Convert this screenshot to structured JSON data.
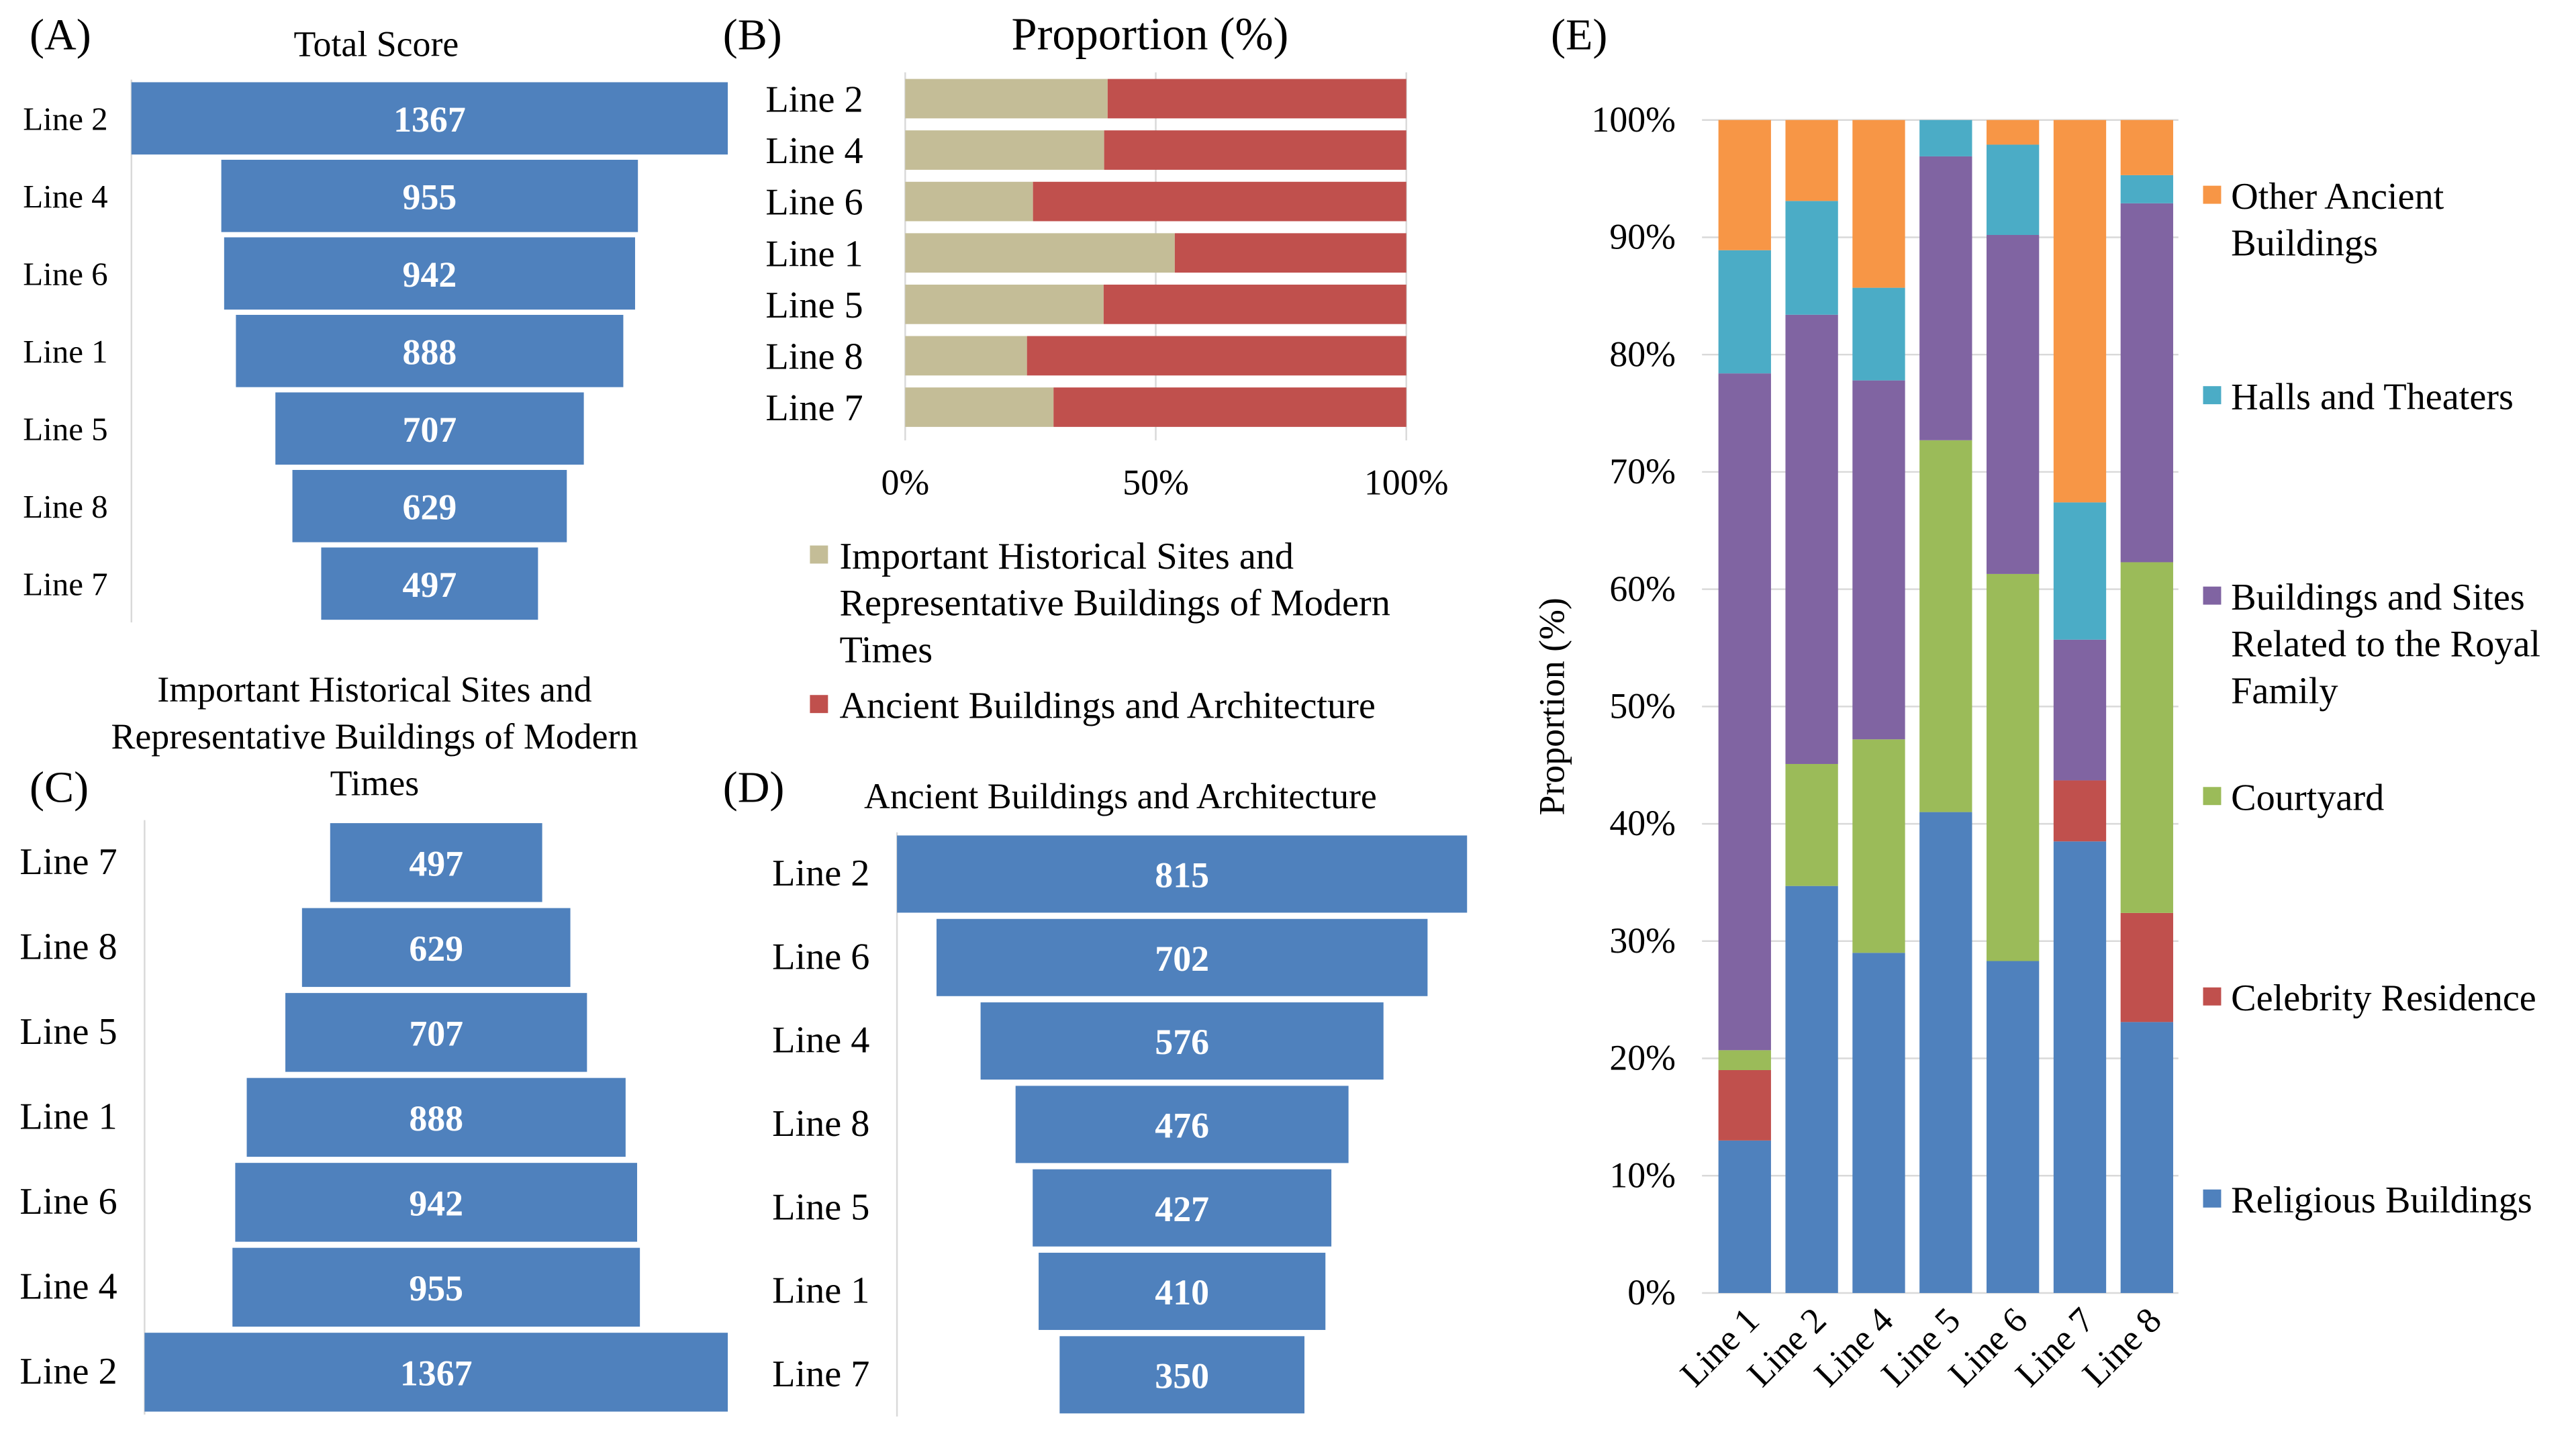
{
  "panels": {
    "a": "(A)",
    "b": "(B)",
    "c": "(C)",
    "d": "(D)",
    "e": "(E)"
  },
  "chart_data": [
    {
      "id": "A",
      "type": "bar",
      "orientation": "horizontal-funnel",
      "title": "Total Score",
      "categories": [
        "Line 2",
        "Line 4",
        "Line 6",
        "Line 1",
        "Line 5",
        "Line 8",
        "Line 7"
      ],
      "values": [
        1367,
        955,
        942,
        888,
        707,
        629,
        497
      ],
      "color": "#4f81bd"
    },
    {
      "id": "B",
      "type": "bar",
      "orientation": "horizontal-stacked-100",
      "title": "Proportion (%)",
      "categories": [
        "Line 2",
        "Line 4",
        "Line 6",
        "Line 1",
        "Line 5",
        "Line 8",
        "Line 7"
      ],
      "series": [
        {
          "name": "Important Historical Sites and Representative Buildings of Modern Times",
          "legend_lines": [
            "Important Historical Sites and",
            "Representative Buildings of Modern",
            "Times"
          ],
          "color": "#c4bd97",
          "values": [
            40.4,
            39.7,
            25.5,
            53.8,
            39.6,
            24.3,
            29.6
          ]
        },
        {
          "name": "Ancient Buildings and Architecture",
          "legend_lines": [
            "Ancient Buildings and Architecture"
          ],
          "color": "#c0504d",
          "values": [
            59.6,
            60.3,
            74.5,
            46.2,
            60.4,
            75.7,
            70.4
          ]
        }
      ],
      "xticks": [
        "0%",
        "50%",
        "100%"
      ],
      "xlim": [
        0,
        100
      ]
    },
    {
      "id": "C",
      "type": "bar",
      "orientation": "horizontal-funnel",
      "title_lines": [
        "Important Historical Sites and",
        "Representative Buildings of Modern",
        "Times"
      ],
      "categories": [
        "Line 7",
        "Line 8",
        "Line 5",
        "Line 1",
        "Line 6",
        "Line 4",
        "Line 2"
      ],
      "values": [
        497,
        629,
        707,
        888,
        942,
        955,
        1367
      ],
      "color": "#4f81bd"
    },
    {
      "id": "D",
      "type": "bar",
      "orientation": "horizontal-funnel",
      "title": "Ancient Buildings and Architecture",
      "categories": [
        "Line 2",
        "Line 6",
        "Line 4",
        "Line 8",
        "Line 5",
        "Line 1",
        "Line 7"
      ],
      "values": [
        815,
        702,
        576,
        476,
        427,
        410,
        350
      ],
      "color": "#4f81bd"
    },
    {
      "id": "E",
      "type": "bar",
      "orientation": "vertical-stacked-100",
      "ylabel": "Proportion (%)",
      "categories": [
        "Line 1",
        "Line 2",
        "Line 4",
        "Line 5",
        "Line 6",
        "Line 7",
        "Line 8"
      ],
      "yticks": [
        "0%",
        "10%",
        "20%",
        "30%",
        "40%",
        "50%",
        "60%",
        "70%",
        "80%",
        "90%",
        "100%"
      ],
      "ylim": [
        0,
        100
      ],
      "grid": true,
      "legend_position": "right",
      "series": [
        {
          "name": "Religious Buildings",
          "legend_lines": [
            "Religious Buildings"
          ],
          "color": "#4f81bd",
          "values": [
            13.0,
            34.7,
            29.0,
            41.0,
            28.3,
            38.5,
            23.1
          ]
        },
        {
          "name": "Celebrity Residence",
          "legend_lines": [
            "Celebrity Residence"
          ],
          "color": "#c0504d",
          "values": [
            6.0,
            0,
            0,
            0,
            0,
            5.2,
            9.3
          ]
        },
        {
          "name": "Courtyard",
          "legend_lines": [
            "Courtyard"
          ],
          "color": "#9bbb59",
          "values": [
            1.7,
            10.4,
            18.2,
            31.7,
            33.0,
            0,
            29.9
          ]
        },
        {
          "name": "Buildings and Sites Related to the Royal Family",
          "legend_lines": [
            "Buildings and Sites",
            "Related to the Royal",
            "Family"
          ],
          "color": "#8064a2",
          "values": [
            57.7,
            38.3,
            30.6,
            24.2,
            28.9,
            12.0,
            30.6
          ]
        },
        {
          "name": "Halls and Theaters",
          "legend_lines": [
            "Halls and Theaters"
          ],
          "color": "#4bacc6",
          "values": [
            10.5,
            9.7,
            7.9,
            3.1,
            7.7,
            11.7,
            2.4
          ]
        },
        {
          "name": "Other Ancient Buildings",
          "legend_lines": [
            "Other Ancient",
            "Buildings"
          ],
          "color": "#f79646",
          "values": [
            11.1,
            6.9,
            14.3,
            0,
            2.1,
            32.6,
            4.7
          ]
        }
      ]
    }
  ]
}
